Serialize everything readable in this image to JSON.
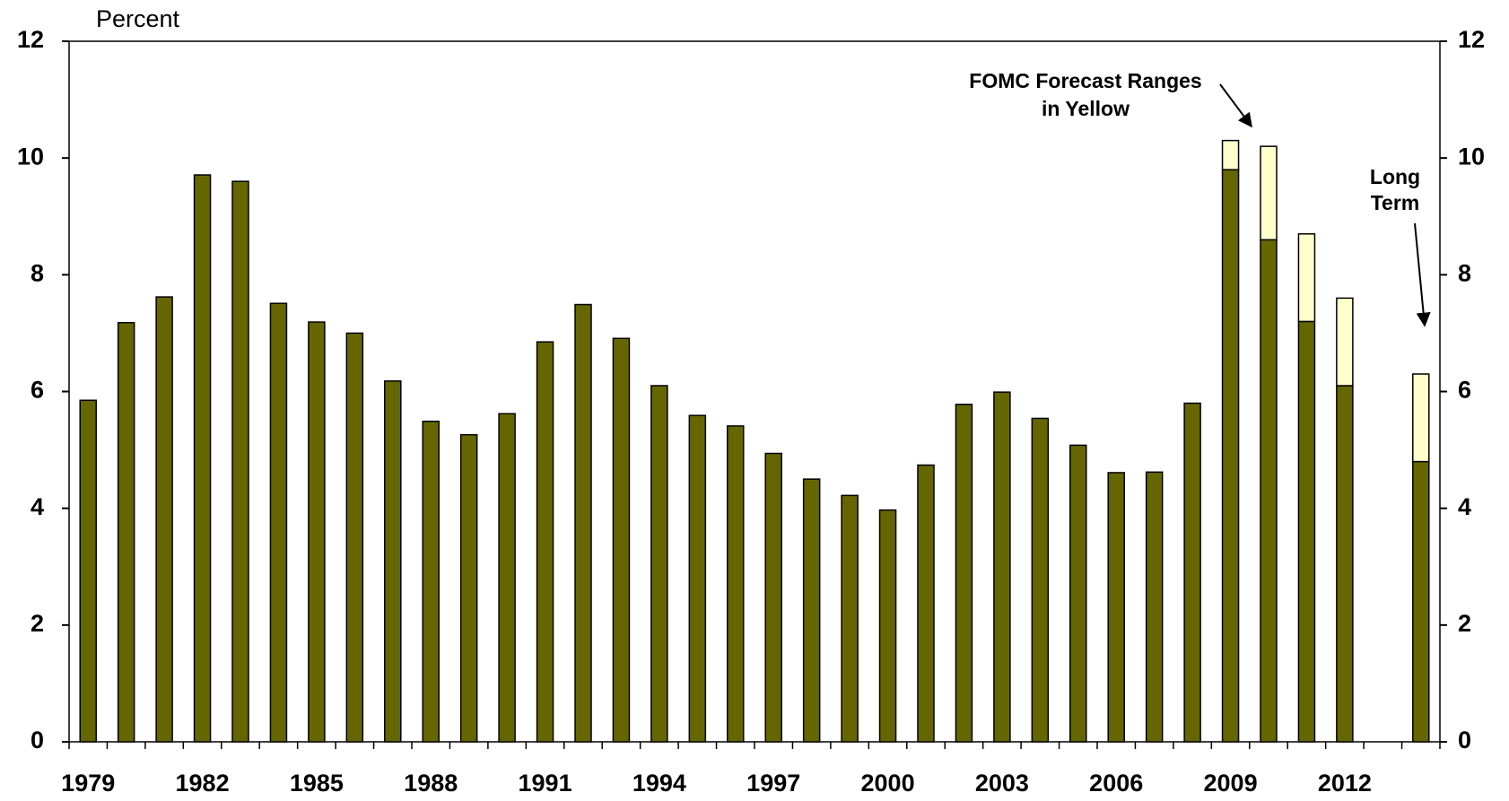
{
  "chart_data": {
    "type": "stacked_bar",
    "y_label": "Percent",
    "categories": [
      "1979",
      null,
      null,
      "1982",
      null,
      null,
      "1985",
      null,
      null,
      "1988",
      null,
      null,
      "1991",
      null,
      null,
      "1994",
      null,
      null,
      "1997",
      null,
      null,
      "2000",
      null,
      null,
      "2003",
      null,
      null,
      "2006",
      null,
      null,
      "2009",
      null,
      null,
      "2012",
      null,
      null
    ],
    "series": [
      {
        "color": "#666600",
        "values": [
          5.85,
          7.18,
          7.62,
          9.71,
          9.6,
          7.51,
          7.19,
          7.0,
          6.18,
          5.49,
          5.26,
          5.62,
          6.85,
          7.49,
          6.91,
          6.1,
          5.59,
          5.41,
          4.94,
          4.5,
          4.22,
          3.97,
          4.74,
          5.78,
          5.99,
          5.54,
          5.08,
          4.61,
          4.62,
          5.8,
          9.8,
          8.6,
          7.2,
          6.1,
          null,
          4.8
        ]
      },
      {
        "color": "#ffffcc",
        "values": [
          null,
          null,
          null,
          null,
          null,
          null,
          null,
          null,
          null,
          null,
          null,
          null,
          null,
          null,
          null,
          null,
          null,
          null,
          null,
          null,
          null,
          null,
          null,
          null,
          null,
          null,
          null,
          null,
          null,
          null,
          0.5,
          1.6,
          1.5,
          1.5,
          null,
          1.5
        ]
      }
    ],
    "ylim": [
      0,
      12
    ],
    "yticks": [
      0,
      2,
      4,
      6,
      8,
      10,
      12
    ],
    "y2lim": [
      0,
      12
    ],
    "y2ticks": [
      0,
      2,
      4,
      6,
      8,
      10,
      12
    ],
    "annotations": [
      {
        "lines": [
          "FOMC Forecast Ranges",
          "in Yellow"
        ]
      },
      {
        "lines": [
          "Long",
          "Term"
        ]
      }
    ]
  }
}
